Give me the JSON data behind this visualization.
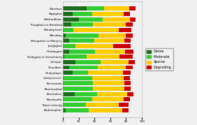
{
  "categories": [
    "Wandoor",
    "Sippighat",
    "SaithanKhari",
    "Pongibalu to Barabala",
    "Mundaphard",
    "Mircobay",
    "Mangoltan to Manjery",
    "Janglighat",
    "Hobdaypar",
    "Dollyganj to Garacharna",
    "Colinpar",
    "Chouldari",
    "Chidyatapu",
    "Carbynscove",
    "Burmanala",
    "Broolusabad",
    "Beachdera",
    "Bamboofla",
    "Baja Lenta Jig",
    "Badmasphar"
  ],
  "dense": [
    30,
    12,
    20,
    10,
    1,
    3,
    8,
    1,
    8,
    2,
    16,
    8,
    12,
    1,
    1,
    1,
    15,
    1,
    1,
    3
  ],
  "moderate": [
    22,
    25,
    30,
    28,
    12,
    42,
    32,
    15,
    33,
    28,
    32,
    36,
    20,
    36,
    37,
    37,
    28,
    36,
    28,
    30
  ],
  "sparse": [
    32,
    40,
    35,
    42,
    58,
    35,
    38,
    48,
    38,
    42,
    35,
    36,
    44,
    40,
    40,
    40,
    38,
    40,
    42,
    42
  ],
  "degrading": [
    8,
    8,
    7,
    8,
    16,
    8,
    8,
    22,
    10,
    16,
    8,
    8,
    10,
    8,
    8,
    8,
    8,
    8,
    12,
    8
  ],
  "colors": {
    "dense": "#1d6b1d",
    "moderate": "#33cc33",
    "sparse": "#ffcc00",
    "degrading": "#cc0000"
  },
  "background": "#f0f0f0",
  "grid_color": "#ffffff",
  "figsize": [
    2.82,
    1.79
  ],
  "dpi": 100
}
